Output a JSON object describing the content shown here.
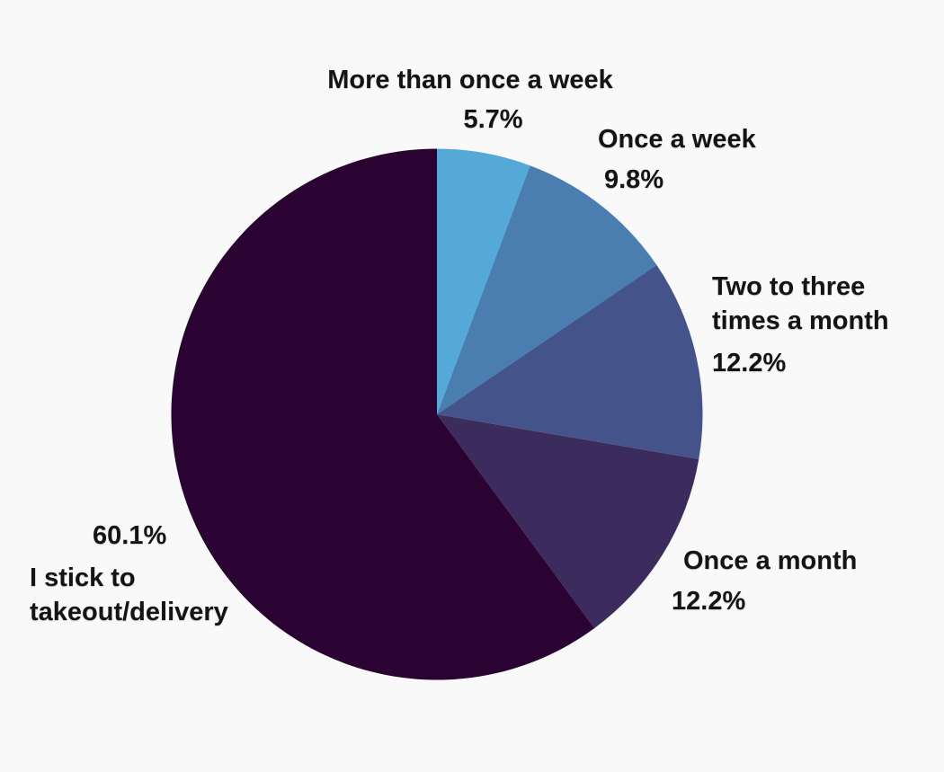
{
  "page": {
    "background": "#F9F9F9",
    "text_color": "#141414"
  },
  "chart_data": {
    "type": "pie",
    "title": "",
    "legend_position": "none",
    "labels_position": "outside",
    "start_angle": "top",
    "direction": "clockwise",
    "categories": [
      "More than once a week",
      "Once a week",
      "Two to three times a month",
      "Once a month",
      "I stick to takeout/delivery"
    ],
    "values": [
      5.7,
      9.8,
      12.2,
      12.2,
      60.1
    ],
    "slices": [
      {
        "label": "More than once a week",
        "label_lines": [
          "More than once a week"
        ],
        "value": 5.7,
        "display": "5.7%",
        "color": "#54A9D6"
      },
      {
        "label": "Once a week",
        "label_lines": [
          "Once a week"
        ],
        "value": 9.8,
        "display": "9.8%",
        "color": "#4A7EB1"
      },
      {
        "label": "Two to three times a month",
        "label_lines": [
          "Two to three",
          "times a month"
        ],
        "value": 12.2,
        "display": "12.2%",
        "color": "#44538A"
      },
      {
        "label": "Once a month",
        "label_lines": [
          "Once a month"
        ],
        "value": 12.2,
        "display": "12.2%",
        "color": "#3C2B5D"
      },
      {
        "label": "I stick to takeout/delivery",
        "label_lines": [
          "I stick to",
          "takeout/delivery"
        ],
        "value": 60.1,
        "display": "60.1%",
        "color": "#2A0333"
      }
    ]
  }
}
